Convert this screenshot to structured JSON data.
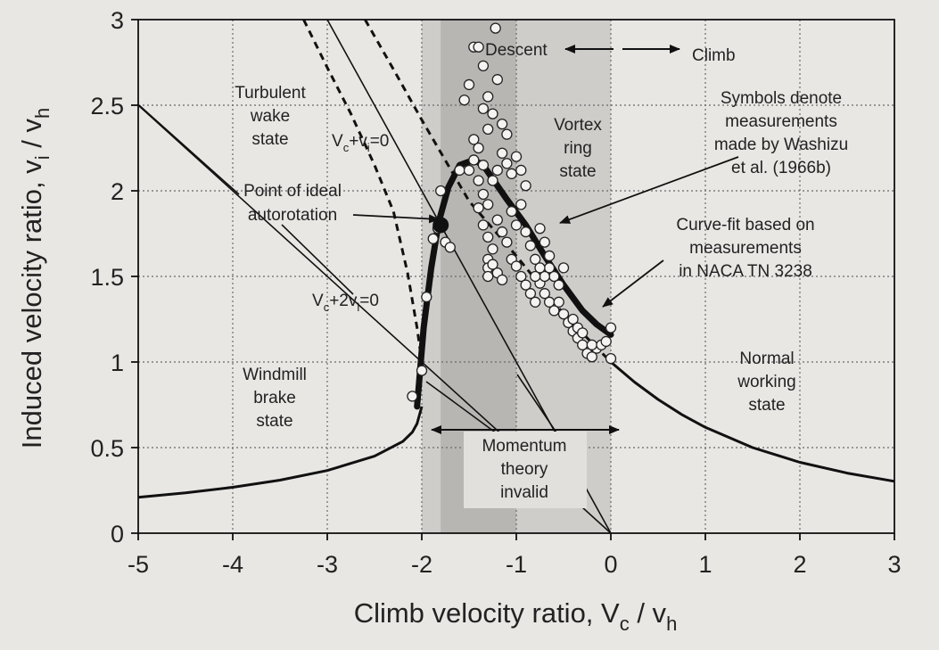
{
  "chart_data": {
    "type": "scatter",
    "xlabel": {
      "main": "Climb velocity ratio, V",
      "sub1": "c",
      "mid": " / v",
      "sub2": "h"
    },
    "ylabel": {
      "main": "Induced velocity ratio, v",
      "sub1": "i",
      "mid": " / v",
      "sub2": "h"
    },
    "xlim": [
      -5,
      3
    ],
    "ylim": [
      0,
      3
    ],
    "x_ticks": [
      "-5",
      "-4",
      "-3",
      "-2",
      "-1",
      "0",
      "1",
      "2",
      "3"
    ],
    "y_ticks": [
      "0",
      "0.5",
      "1",
      "1.5",
      "2",
      "2.5",
      "3"
    ],
    "grid": true,
    "shaded_regions": [
      {
        "x": [
          -2,
          0
        ],
        "color": "#cfcdca"
      },
      {
        "x": [
          -1.8,
          -1.0
        ],
        "color": "#b8b6b3"
      }
    ],
    "series": [
      {
        "role": "momentum_theory_windmill",
        "style": "solid",
        "points": [
          [
            -5,
            0.21
          ],
          [
            -4.5,
            0.236
          ],
          [
            -4,
            0.268
          ],
          [
            -3.5,
            0.31
          ],
          [
            -3,
            0.366
          ],
          [
            -2.5,
            0.45
          ],
          [
            -2.2,
            0.536
          ],
          [
            -2.1,
            0.59
          ],
          [
            -2.05,
            0.64
          ],
          [
            -2.0,
            0.74
          ]
        ]
      },
      {
        "role": "momentum_theory_normal",
        "style": "solid",
        "points": [
          [
            0,
            1.0
          ],
          [
            0.25,
            0.883
          ],
          [
            0.5,
            0.781
          ],
          [
            0.75,
            0.693
          ],
          [
            1,
            0.618
          ],
          [
            1.5,
            0.5
          ],
          [
            2,
            0.414
          ],
          [
            2.5,
            0.351
          ],
          [
            3,
            0.303
          ]
        ]
      },
      {
        "role": "vc_plus_vi_zero",
        "style": "solid-thin",
        "points": [
          [
            -3.0,
            3.0
          ],
          [
            0.0,
            0.0
          ]
        ]
      },
      {
        "role": "vc_plus_2vi_zero",
        "style": "solid-thin",
        "points": [
          [
            -5.0,
            2.5
          ],
          [
            0.0,
            0.0
          ]
        ]
      },
      {
        "role": "extension_windmill_dashed",
        "style": "dashed",
        "points": [
          [
            -3.25,
            3.0
          ],
          [
            -3.0,
            2.72
          ],
          [
            -2.75,
            2.45
          ],
          [
            -2.5,
            2.15
          ],
          [
            -2.3,
            1.88
          ],
          [
            -2.15,
            1.52
          ],
          [
            -2.05,
            1.2
          ],
          [
            -2.0,
            1.0
          ]
        ]
      },
      {
        "role": "extension_normal_dashed",
        "style": "dashed",
        "points": [
          [
            -2.6,
            3.0
          ],
          [
            -2.3,
            2.71
          ],
          [
            -2.0,
            2.414
          ],
          [
            -1.5,
            1.94
          ],
          [
            -1.0,
            1.62
          ],
          [
            -0.5,
            1.28
          ],
          [
            0.0,
            1.0
          ]
        ]
      },
      {
        "role": "curve_fit_naca",
        "style": "thick",
        "points": [
          [
            -2.05,
            0.74
          ],
          [
            -1.98,
            1.2
          ],
          [
            -1.9,
            1.55
          ],
          [
            -1.82,
            1.82
          ],
          [
            -1.72,
            2.02
          ],
          [
            -1.6,
            2.15
          ],
          [
            -1.45,
            2.18
          ],
          [
            -1.35,
            2.15
          ],
          [
            -1.25,
            2.07
          ],
          [
            -1.1,
            1.95
          ],
          [
            -0.9,
            1.8
          ],
          [
            -0.7,
            1.62
          ],
          [
            -0.5,
            1.45
          ],
          [
            -0.3,
            1.3
          ],
          [
            -0.15,
            1.22
          ],
          [
            0.0,
            1.16
          ]
        ]
      },
      {
        "role": "measurements_washizu",
        "style": "markers",
        "points": [
          [
            -2.1,
            0.8
          ],
          [
            -2.0,
            0.95
          ],
          [
            -1.95,
            1.38
          ],
          [
            -1.88,
            1.72
          ],
          [
            -1.83,
            1.78
          ],
          [
            -1.75,
            1.7
          ],
          [
            -1.7,
            1.67
          ],
          [
            -1.8,
            2.0
          ],
          [
            -1.6,
            2.12
          ],
          [
            -1.55,
            2.53
          ],
          [
            -1.5,
            2.62
          ],
          [
            -1.45,
            2.3
          ],
          [
            -1.4,
            2.25
          ],
          [
            -1.35,
            2.15
          ],
          [
            -1.45,
            2.84
          ],
          [
            -1.4,
            2.84
          ],
          [
            -1.35,
            2.73
          ],
          [
            -1.3,
            2.55
          ],
          [
            -1.25,
            2.45
          ],
          [
            -1.22,
            2.95
          ],
          [
            -1.2,
            2.65
          ],
          [
            -1.15,
            2.39
          ],
          [
            -1.1,
            2.33
          ],
          [
            -1.35,
            2.48
          ],
          [
            -1.3,
            2.36
          ],
          [
            -1.5,
            2.12
          ],
          [
            -1.45,
            2.18
          ],
          [
            -1.4,
            2.06
          ],
          [
            -1.35,
            1.98
          ],
          [
            -1.3,
            1.92
          ],
          [
            -1.25,
            2.06
          ],
          [
            -1.2,
            2.12
          ],
          [
            -1.15,
            2.22
          ],
          [
            -1.1,
            2.16
          ],
          [
            -1.05,
            2.1
          ],
          [
            -1.0,
            2.2
          ],
          [
            -0.95,
            2.12
          ],
          [
            -0.9,
            2.03
          ],
          [
            -1.4,
            1.9
          ],
          [
            -1.35,
            1.8
          ],
          [
            -1.3,
            1.73
          ],
          [
            -1.25,
            1.66
          ],
          [
            -1.2,
            1.83
          ],
          [
            -1.15,
            1.76
          ],
          [
            -1.1,
            1.7
          ],
          [
            -1.05,
            1.88
          ],
          [
            -1.0,
            1.8
          ],
          [
            -0.95,
            1.92
          ],
          [
            -0.9,
            1.76
          ],
          [
            -0.85,
            1.68
          ],
          [
            -0.8,
            1.6
          ],
          [
            -0.75,
            1.78
          ],
          [
            -0.7,
            1.7
          ],
          [
            -0.65,
            1.62
          ],
          [
            -1.3,
            1.6
          ],
          [
            -1.3,
            1.55
          ],
          [
            -1.3,
            1.5
          ],
          [
            -1.25,
            1.57
          ],
          [
            -1.2,
            1.52
          ],
          [
            -1.15,
            1.48
          ],
          [
            -1.05,
            1.6
          ],
          [
            -1.0,
            1.56
          ],
          [
            -0.95,
            1.5
          ],
          [
            -0.9,
            1.45
          ],
          [
            -0.85,
            1.4
          ],
          [
            -0.8,
            1.35
          ],
          [
            -0.75,
            1.46
          ],
          [
            -0.7,
            1.4
          ],
          [
            -0.65,
            1.35
          ],
          [
            -0.6,
            1.3
          ],
          [
            -0.55,
            1.35
          ],
          [
            -0.5,
            1.28
          ],
          [
            -0.45,
            1.23
          ],
          [
            -0.4,
            1.18
          ],
          [
            -0.35,
            1.14
          ],
          [
            -0.3,
            1.1
          ],
          [
            -0.25,
            1.05
          ],
          [
            -0.2,
            1.03
          ],
          [
            -0.15,
            1.08
          ],
          [
            -0.4,
            1.25
          ],
          [
            -0.35,
            1.2
          ],
          [
            -0.3,
            1.17
          ],
          [
            -0.2,
            1.1
          ],
          [
            -0.1,
            1.1
          ],
          [
            -0.05,
            1.12
          ],
          [
            0.0,
            1.2
          ],
          [
            0.0,
            1.02
          ],
          [
            -0.6,
            1.5
          ],
          [
            -0.55,
            1.45
          ],
          [
            -0.5,
            1.55
          ],
          [
            -0.65,
            1.55
          ],
          [
            -0.7,
            1.5
          ],
          [
            -0.75,
            1.55
          ],
          [
            -0.8,
            1.5
          ]
        ]
      },
      {
        "role": "ideal_autorotation_point",
        "style": "filled-marker",
        "points": [
          [
            -1.8,
            1.8
          ]
        ]
      }
    ],
    "annotations": {
      "descent": "Descent",
      "climb": "Climb",
      "turbulent": [
        "Turbulent",
        "wake",
        "state"
      ],
      "vortex": [
        "Vortex",
        "ring",
        "state"
      ],
      "symbols": [
        "Symbols denote",
        "measurements",
        "made by Washizu",
        "et al. (1966b)"
      ],
      "curvefit": [
        "Curve-fit based on",
        "measurements",
        "in NACA TN 3238"
      ],
      "ideal": [
        "Point of ideal",
        "autorotation"
      ],
      "windmill": [
        "Windmill",
        "brake",
        "state"
      ],
      "normal": [
        "Normal",
        "working",
        "state"
      ],
      "momentum": [
        "Momentum",
        "theory",
        "invalid"
      ],
      "vc_vi": {
        "a": "V",
        "b": "c",
        "c": "+v",
        "d": "i",
        "e": "=0"
      },
      "vc_2vi": {
        "a": "V",
        "b": "c",
        "c": "+2v",
        "d": "i",
        "e": "=0"
      }
    }
  }
}
